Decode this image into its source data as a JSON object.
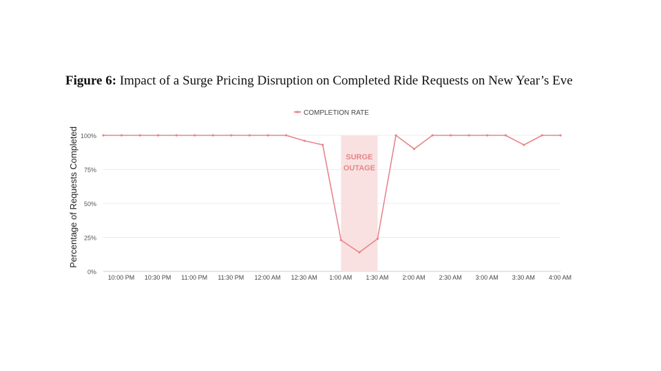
{
  "figure": {
    "label": "Figure 6:",
    "caption": "Impact of a Surge Pricing Disruption on Completed Ride Requests on New Year’s Eve"
  },
  "chart_data": {
    "type": "line",
    "ylabel": "Percentage of Requests Completed",
    "xlabel": "",
    "ylim": [
      0,
      100
    ],
    "y_ticks": [
      "0%",
      "25%",
      "50%",
      "75%",
      "100%"
    ],
    "y_tick_values": [
      0,
      25,
      50,
      75,
      100
    ],
    "x_tick_labels": [
      "10:00 PM",
      "10:30 PM",
      "11:00 PM",
      "11:30 PM",
      "12:00 AM",
      "12:30 AM",
      "1:00 AM",
      "1:30 AM",
      "2:00 AM",
      "2:30 AM",
      "3:00 AM",
      "3:30 AM",
      "4:00 AM"
    ],
    "legend": {
      "position": "top-center",
      "entries": [
        "COMPLETION RATE"
      ]
    },
    "grid": true,
    "series": [
      {
        "name": "COMPLETION RATE",
        "color": "#e8848a",
        "x": [
          "10:00 PM",
          "10:15 PM",
          "10:30 PM",
          "10:45 PM",
          "11:00 PM",
          "11:15 PM",
          "11:30 PM",
          "11:45 PM",
          "12:00 AM",
          "12:15 AM",
          "12:30 AM",
          "12:45 AM",
          "1:00 AM",
          "1:15 AM",
          "1:30 AM",
          "1:45 AM",
          "2:00 AM",
          "2:15 AM",
          "2:30 AM",
          "2:45 AM",
          "3:00 AM",
          "3:15 AM",
          "3:30 AM",
          "3:45 AM",
          "4:00 AM",
          "4:15 AM"
        ],
        "values": [
          100,
          100,
          100,
          100,
          100,
          100,
          100,
          100,
          100,
          100,
          100,
          96,
          93,
          23,
          14,
          24,
          100,
          90,
          100,
          100,
          100,
          100,
          100,
          93,
          100,
          100
        ]
      }
    ],
    "annotations": [
      {
        "type": "shaded_region",
        "x_start": "1:15 AM",
        "x_end": "1:45 AM",
        "label_lines": [
          "SURGE",
          "OUTAGE"
        ],
        "color": "#f9e1e1",
        "text_color": "#e8848a"
      }
    ]
  }
}
